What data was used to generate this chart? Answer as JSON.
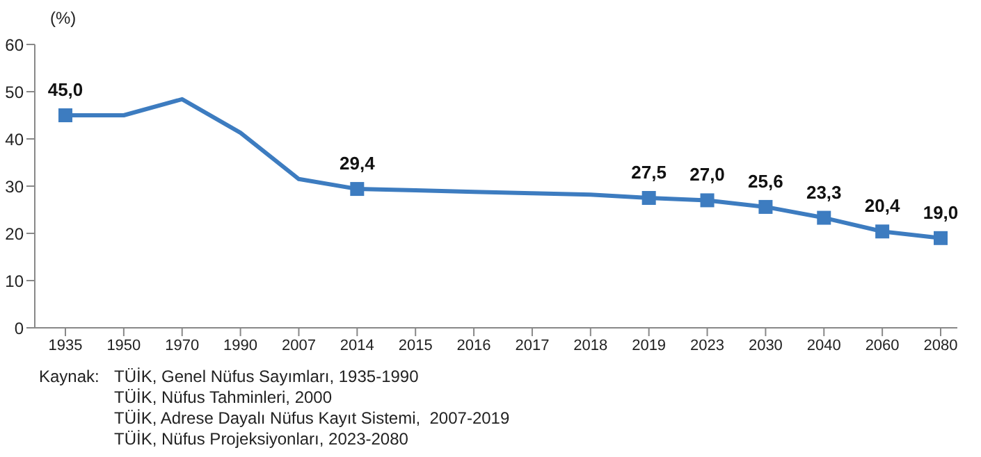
{
  "chart_data": {
    "type": "line",
    "ylabel": "(%)",
    "categories": [
      "1935",
      "1950",
      "1970",
      "1990",
      "2007",
      "2014",
      "2015",
      "2016",
      "2017",
      "2018",
      "2019",
      "2023",
      "2030",
      "2040",
      "2060",
      "2080"
    ],
    "series": [
      {
        "color": "#3d7cc0",
        "values": [
          45.0,
          45.0,
          48.4,
          41.3,
          31.5,
          29.4,
          29.1,
          28.8,
          28.5,
          28.2,
          27.5,
          27.0,
          25.6,
          23.3,
          20.4,
          19.0
        ],
        "value_labels": [
          "45,0",
          null,
          null,
          null,
          null,
          "29,4",
          null,
          null,
          null,
          null,
          "27,5",
          "27,0",
          "25,6",
          "23,3",
          "20,4",
          "19,0"
        ]
      }
    ],
    "ylim": [
      0,
      60
    ],
    "yticks": [
      0,
      10,
      20,
      30,
      40,
      50,
      60
    ],
    "grid": false,
    "legend": false,
    "marker": "square",
    "line_style": "solid",
    "annotations": [
      "Kaynak:",
      "TÜİK, Genel Nüfus Sayımları, 1935-1990",
      "TÜİK, Nüfus Tahminleri, 2000",
      "TÜİK, Adrese Dayalı Nüfus Kayıt Sistemi,  2007-2019",
      "TÜİK, Nüfus Projeksiyonları, 2023-2080"
    ]
  }
}
